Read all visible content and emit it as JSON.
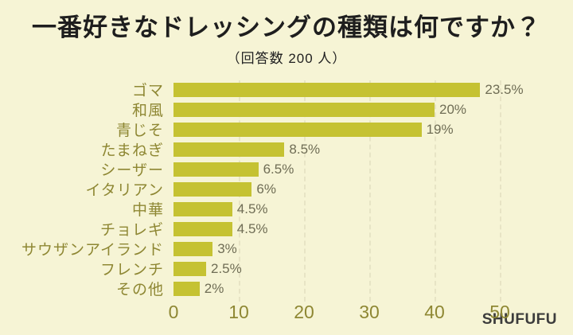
{
  "header": {
    "title": "一番好きなドレッシングの種類は何ですか？",
    "subtitle": "（回答数 200 人）"
  },
  "chart_data": {
    "type": "bar",
    "orientation": "horizontal",
    "title": "一番好きなドレッシングの種類は何ですか？",
    "subtitle": "（回答数 200 人）",
    "respondents_total": 200,
    "categories": [
      "ゴマ",
      "和風",
      "青じそ",
      "たまねぎ",
      "シーザー",
      "イタリアン",
      "中華",
      "チョレギ",
      "サウザンアイランド",
      "フレンチ",
      "その他"
    ],
    "percent_labels": [
      "23.5%",
      "20%",
      "19%",
      "8.5%",
      "6.5%",
      "6%",
      "4.5%",
      "4.5%",
      "3%",
      "2.5%",
      "2%"
    ],
    "percent_values": [
      23.5,
      20,
      19,
      8.5,
      6.5,
      6,
      4.5,
      4.5,
      3,
      2.5,
      2
    ],
    "values_respondents": [
      47,
      40,
      38,
      17,
      13,
      12,
      9,
      9,
      6,
      5,
      4
    ],
    "x_ticks": [
      0,
      10,
      20,
      30,
      40,
      50
    ],
    "xlim": [
      0,
      53
    ],
    "axis_value_scale": "respondents",
    "grid": "vertical-dashed",
    "legend": "none"
  },
  "colors": {
    "background": "#f6f4d5",
    "bar": "#c5c232",
    "category_label": "#8e8733",
    "axis_label": "#8e8733",
    "percent_label": "#6f6d55",
    "title": "#1e1e1e",
    "gridline": "#e7e4c5",
    "brand": "#3c3c3c"
  },
  "footer": {
    "brand": "SHUFUFU"
  }
}
